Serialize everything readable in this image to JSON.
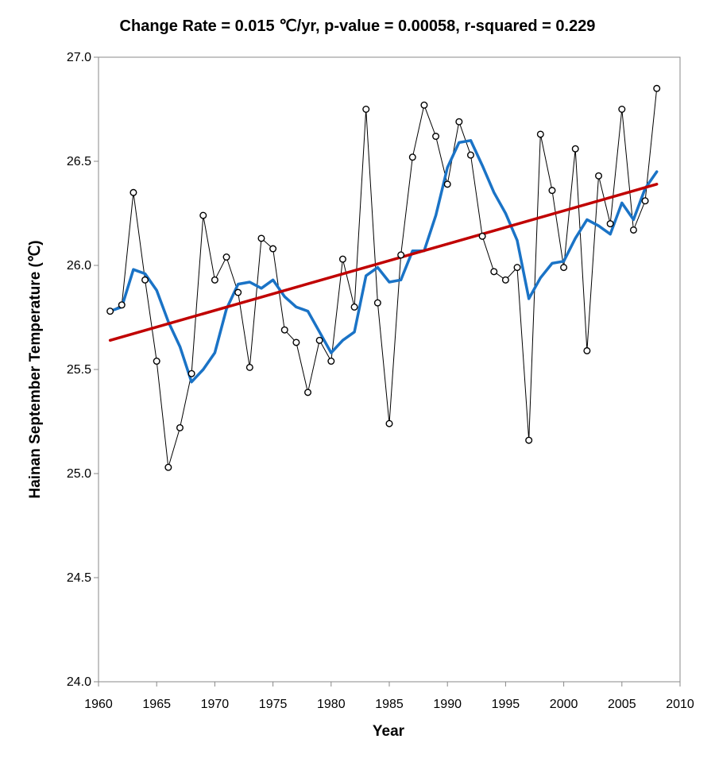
{
  "chart_data": {
    "type": "line",
    "title": "Change Rate =  0.015 ℃/yr,  p-value =  0.00058,  r-squared =  0.229",
    "xlabel": "Year",
    "ylabel": "Hainan September Temperature (℃)",
    "xlim": [
      1960,
      2010
    ],
    "ylim": [
      24.0,
      27.0
    ],
    "x_ticks": [
      1960,
      1965,
      1970,
      1975,
      1980,
      1985,
      1990,
      1995,
      2000,
      2005,
      2010
    ],
    "y_ticks": [
      "24.0",
      "24.5",
      "25.0",
      "25.5",
      "26.0",
      "26.5",
      "27.0"
    ],
    "grid": false,
    "legend": "none",
    "colors": {
      "observed": "#000000",
      "smoothed": "#1a73c6",
      "trend": "#c00000",
      "marker_fill": "#ffffff"
    },
    "x": [
      1961,
      1962,
      1963,
      1964,
      1965,
      1966,
      1967,
      1968,
      1969,
      1970,
      1971,
      1972,
      1973,
      1974,
      1975,
      1976,
      1977,
      1978,
      1979,
      1980,
      1981,
      1982,
      1983,
      1984,
      1985,
      1986,
      1987,
      1988,
      1989,
      1990,
      1991,
      1992,
      1993,
      1994,
      1995,
      1996,
      1997,
      1998,
      1999,
      2000,
      2001,
      2002,
      2003,
      2004,
      2005,
      2006,
      2007,
      2008
    ],
    "series": [
      {
        "style": "thin-line-circle-markers",
        "values": [
          25.78,
          25.81,
          26.35,
          25.93,
          25.54,
          25.03,
          25.22,
          25.48,
          26.24,
          25.93,
          26.04,
          25.87,
          25.51,
          26.13,
          26.08,
          25.69,
          25.63,
          25.39,
          25.64,
          25.54,
          26.03,
          25.8,
          26.75,
          25.82,
          25.24,
          26.05,
          26.52,
          26.77,
          26.62,
          26.39,
          26.69,
          26.53,
          26.14,
          25.97,
          25.93,
          25.99,
          25.16,
          26.63,
          26.36,
          25.99,
          26.56,
          25.59,
          26.43,
          26.2,
          26.75,
          26.17,
          26.31,
          26.85
        ]
      },
      {
        "style": "thick-smoothed-line",
        "values": [
          25.78,
          25.8,
          25.98,
          25.96,
          25.88,
          25.73,
          25.61,
          25.44,
          25.5,
          25.58,
          25.79,
          25.91,
          25.92,
          25.89,
          25.93,
          25.85,
          25.8,
          25.78,
          25.68,
          25.58,
          25.64,
          25.68,
          25.95,
          25.99,
          25.92,
          25.93,
          26.07,
          26.07,
          26.24,
          26.47,
          26.59,
          26.6,
          26.48,
          26.35,
          26.25,
          26.12,
          25.84,
          25.94,
          26.01,
          26.02,
          26.13,
          26.22,
          26.19,
          26.15,
          26.3,
          26.22,
          26.37,
          26.45
        ]
      },
      {
        "style": "linear-trend",
        "x": [
          1961,
          2008
        ],
        "values": [
          25.64,
          26.39
        ]
      }
    ]
  }
}
